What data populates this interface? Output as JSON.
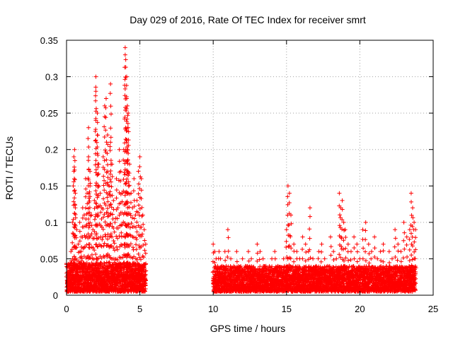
{
  "chart_data": {
    "type": "scatter",
    "title": "Day 029 of 2016, Rate Of TEC Index for receiver smrt",
    "xlabel": "GPS time / hours",
    "ylabel": "ROTI / TECUs",
    "xlim": [
      0,
      25
    ],
    "ylim": [
      0,
      0.35
    ],
    "xticks": [
      0,
      5,
      10,
      15,
      20,
      25
    ],
    "xtick_labels": [
      "0",
      "5",
      "10",
      "15",
      "20",
      "25"
    ],
    "yticks": [
      0,
      0.05,
      0.1,
      0.15,
      0.2,
      0.25,
      0.3,
      0.35
    ],
    "ytick_labels": [
      "0",
      "0.05",
      "0.1",
      "0.15",
      "0.2",
      "0.25",
      "0.3",
      "0.35"
    ],
    "grid": true,
    "marker": "+",
    "color": "#ff0000",
    "series": [
      {
        "name": "ROTI",
        "x": [
          0.1,
          0.2,
          0.3,
          0.4,
          0.5,
          0.5,
          0.55,
          0.6,
          0.6,
          0.7,
          0.8,
          0.9,
          1.0,
          1.0,
          1.1,
          1.2,
          1.3,
          1.4,
          1.5,
          1.5,
          1.6,
          1.6,
          1.7,
          1.8,
          1.9,
          2.0,
          2.0,
          2.1,
          2.1,
          2.2,
          2.3,
          2.4,
          2.5,
          2.6,
          2.7,
          2.8,
          2.8,
          2.9,
          3.0,
          3.0,
          3.1,
          3.2,
          3.3,
          3.4,
          3.5,
          3.6,
          3.7,
          3.8,
          3.9,
          4.0,
          4.0,
          4.1,
          4.1,
          4.15,
          4.2,
          4.2,
          4.3,
          4.4,
          4.5,
          4.6,
          4.7,
          4.8,
          4.9,
          5.0,
          5.1,
          5.2,
          5.3,
          5.4,
          10.0,
          10.1,
          10.2,
          10.3,
          10.4,
          10.5,
          10.6,
          10.8,
          11.0,
          11.2,
          11.4,
          11.6,
          11.8,
          12.0,
          12.2,
          12.4,
          12.6,
          12.8,
          13.0,
          13.2,
          13.4,
          13.6,
          13.8,
          14.0,
          14.2,
          14.4,
          14.6,
          14.8,
          15.0,
          15.1,
          15.2,
          15.3,
          15.5,
          15.7,
          15.9,
          16.1,
          16.3,
          16.5,
          16.6,
          16.8,
          17.0,
          17.2,
          17.4,
          17.6,
          17.8,
          18.0,
          18.2,
          18.4,
          18.6,
          18.7,
          18.8,
          18.9,
          19.0,
          19.2,
          19.4,
          19.6,
          19.8,
          20.0,
          20.2,
          20.4,
          20.6,
          20.8,
          21.0,
          21.2,
          21.4,
          21.6,
          21.8,
          22.0,
          22.2,
          22.4,
          22.6,
          22.8,
          23.0,
          23.2,
          23.4,
          23.5,
          23.6,
          23.7,
          23.8
        ],
        "y": [
          0.04,
          0.03,
          0.06,
          0.1,
          0.19,
          0.17,
          0.2,
          0.14,
          0.12,
          0.09,
          0.07,
          0.1,
          0.08,
          0.06,
          0.12,
          0.11,
          0.16,
          0.14,
          0.23,
          0.19,
          0.17,
          0.15,
          0.11,
          0.09,
          0.13,
          0.3,
          0.28,
          0.22,
          0.25,
          0.18,
          0.14,
          0.12,
          0.19,
          0.26,
          0.27,
          0.22,
          0.17,
          0.15,
          0.29,
          0.21,
          0.18,
          0.13,
          0.1,
          0.16,
          0.12,
          0.2,
          0.17,
          0.14,
          0.2,
          0.34,
          0.33,
          0.27,
          0.3,
          0.26,
          0.25,
          0.23,
          0.18,
          0.14,
          0.12,
          0.16,
          0.11,
          0.13,
          0.17,
          0.19,
          0.16,
          0.11,
          0.09,
          0.07,
          0.07,
          0.06,
          0.05,
          0.04,
          0.06,
          0.05,
          0.04,
          0.06,
          0.09,
          0.05,
          0.04,
          0.06,
          0.03,
          0.05,
          0.04,
          0.06,
          0.05,
          0.03,
          0.07,
          0.06,
          0.05,
          0.04,
          0.03,
          0.05,
          0.06,
          0.04,
          0.03,
          0.05,
          0.09,
          0.15,
          0.14,
          0.11,
          0.07,
          0.06,
          0.05,
          0.08,
          0.07,
          0.06,
          0.12,
          0.05,
          0.04,
          0.06,
          0.07,
          0.05,
          0.04,
          0.08,
          0.06,
          0.05,
          0.14,
          0.12,
          0.13,
          0.1,
          0.09,
          0.07,
          0.06,
          0.08,
          0.07,
          0.05,
          0.09,
          0.1,
          0.07,
          0.06,
          0.08,
          0.05,
          0.06,
          0.07,
          0.04,
          0.06,
          0.05,
          0.09,
          0.07,
          0.06,
          0.1,
          0.08,
          0.09,
          0.14,
          0.12,
          0.1,
          0.09
        ]
      }
    ],
    "density_bands": [
      {
        "x_range": [
          0.0,
          5.4
        ],
        "y_range": [
          0.005,
          0.045
        ]
      },
      {
        "x_range": [
          10.0,
          23.8
        ],
        "y_range": [
          0.005,
          0.04
        ]
      }
    ]
  }
}
